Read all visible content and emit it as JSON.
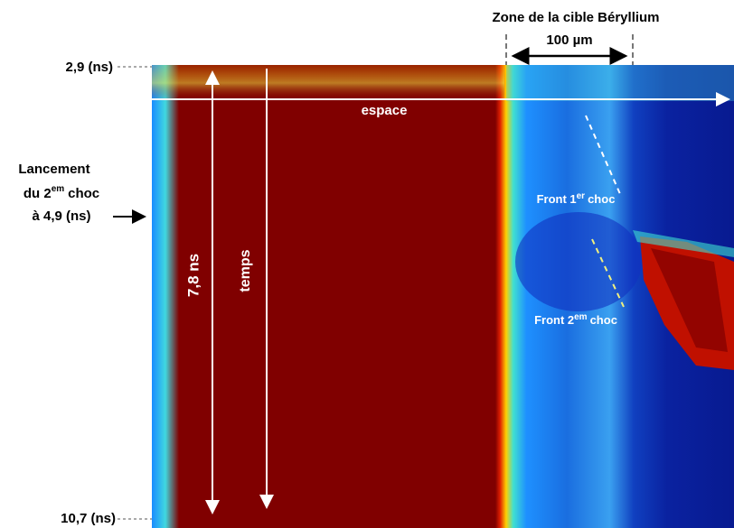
{
  "axis_labels": {
    "top": "2,9 (ns)",
    "bottom": "10,7 (ns)"
  },
  "zone": {
    "title": "Zone de la cible Béryllium",
    "width": "100 µm"
  },
  "launch": {
    "line1": "Lancement",
    "line2_prefix": "du 2",
    "line2_sup": "em",
    "line2_suffix": "choc",
    "line3": "à 4,9 (ns)"
  },
  "arrows": {
    "space": "espace",
    "duration": "7,8 ns",
    "time": "temps"
  },
  "fronts": [
    {
      "prefix": "Front 1",
      "sup": "er",
      "suffix": "choc"
    },
    {
      "prefix": "Front 2",
      "sup": "em",
      "suffix": "choc"
    }
  ]
}
